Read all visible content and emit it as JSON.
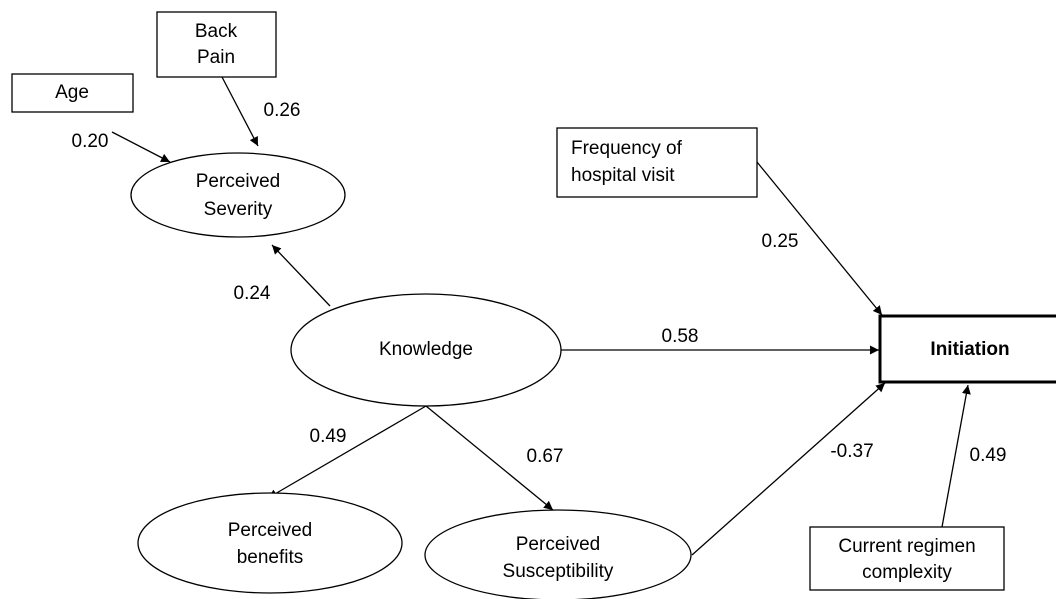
{
  "nodes": [
    {
      "id": "age",
      "lines": [
        "Age"
      ]
    },
    {
      "id": "back-pain",
      "lines": [
        "Back",
        "Pain"
      ]
    },
    {
      "id": "perceived-severity",
      "lines": [
        "Perceived",
        "Severity"
      ]
    },
    {
      "id": "knowledge",
      "lines": [
        "Knowledge"
      ]
    },
    {
      "id": "perceived-benefits",
      "lines": [
        "Perceived",
        "benefits"
      ]
    },
    {
      "id": "perceived-susceptibility",
      "lines": [
        "Perceived",
        "Susceptibility"
      ]
    },
    {
      "id": "frequency",
      "lines": [
        "Frequency of",
        "hospital visit"
      ]
    },
    {
      "id": "initiation",
      "lines": [
        "Initiation"
      ]
    },
    {
      "id": "regimen",
      "lines": [
        "Current regimen",
        "complexity"
      ]
    }
  ],
  "edges": [
    {
      "from": "age",
      "to": "perceived-severity",
      "label": "0.20"
    },
    {
      "from": "back-pain",
      "to": "perceived-severity",
      "label": "0.26"
    },
    {
      "from": "knowledge",
      "to": "perceived-severity",
      "label": "0.24"
    },
    {
      "from": "knowledge",
      "to": "initiation",
      "label": "0.58"
    },
    {
      "from": "knowledge",
      "to": "perceived-benefits",
      "label": "0.49"
    },
    {
      "from": "knowledge",
      "to": "perceived-susceptibility",
      "label": "0.67"
    },
    {
      "from": "frequency",
      "to": "initiation",
      "label": "0.25"
    },
    {
      "from": "perceived-susceptibility",
      "to": "initiation",
      "label": "-0.37"
    },
    {
      "from": "regimen",
      "to": "initiation",
      "label": "0.49"
    }
  ]
}
